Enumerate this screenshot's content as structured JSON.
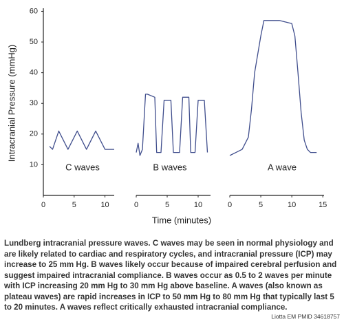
{
  "chart_data": [
    {
      "type": "line",
      "annotation": "C waves",
      "ylabel": "Intracranial Pressure (mmHg)",
      "ylim": [
        0,
        61
      ],
      "yticks": [
        10,
        20,
        30,
        40,
        50,
        60
      ],
      "xlim": [
        0,
        11.5
      ],
      "xticks": [
        0,
        5,
        10
      ],
      "x": [
        1,
        1.5,
        2.5,
        4,
        5.5,
        7,
        8.5,
        10,
        11.5
      ],
      "series": [
        {
          "color": "#3f4d8c",
          "values": [
            16,
            15,
            21,
            15,
            21,
            15,
            21,
            15,
            15
          ]
        }
      ]
    },
    {
      "type": "line",
      "annotation": "B waves",
      "ylim": [
        0,
        61
      ],
      "xlim": [
        0,
        12
      ],
      "xticks": [
        0,
        5,
        10
      ],
      "x": [
        0,
        0.3,
        0.6,
        1,
        1.5,
        1.8,
        3,
        3.3,
        4,
        4.5,
        5.6,
        6,
        7,
        7.5,
        8.5,
        8.8,
        9.5,
        10,
        11,
        11.5
      ],
      "series": [
        {
          "color": "#3f4d8c",
          "values": [
            14,
            17,
            13,
            15,
            33,
            33,
            32,
            14,
            14,
            31,
            31,
            14,
            14,
            32,
            32,
            14,
            14,
            31,
            31,
            14
          ]
        }
      ]
    },
    {
      "type": "line",
      "annotation": "A wave",
      "ylim": [
        0,
        61
      ],
      "xlim": [
        0,
        15.2
      ],
      "xticks": [
        0,
        5,
        10,
        15
      ],
      "x": [
        0,
        1,
        2,
        3,
        3.5,
        4,
        5,
        5.5,
        6,
        8,
        10,
        10.5,
        11,
        11.5,
        12,
        12.5,
        13,
        14
      ],
      "series": [
        {
          "color": "#3f4d8c",
          "values": [
            13,
            14,
            15,
            19,
            28,
            40,
            52,
            57,
            57,
            57,
            56,
            52,
            40,
            27,
            18,
            15,
            14,
            14
          ]
        }
      ]
    }
  ],
  "figure": {
    "xlabel": "Time (minutes)",
    "caption": "Lundberg intracranial pressure waves. C waves may be seen in normal physiology and are likely related to cardiac and respiratory cycles, and intracranial pressure (ICP) may increase to 25 mm Hg. B waves likely occur because of impaired cerebral perfusion and suggest impaired intracranial compliance. B waves occur as 0.5 to 2 waves per minute with ICP increasing 20 mm Hg to 30 mm Hg above baseline. A waves (also known as plateau waves) are rapid increases in ICP to 50 mm Hg to 80 mm Hg that typically last 5 to 20 minutes. A waves reflect critically exhausted intracranial compliance.",
    "credit": "Liotta EM  PMID  34618757"
  }
}
